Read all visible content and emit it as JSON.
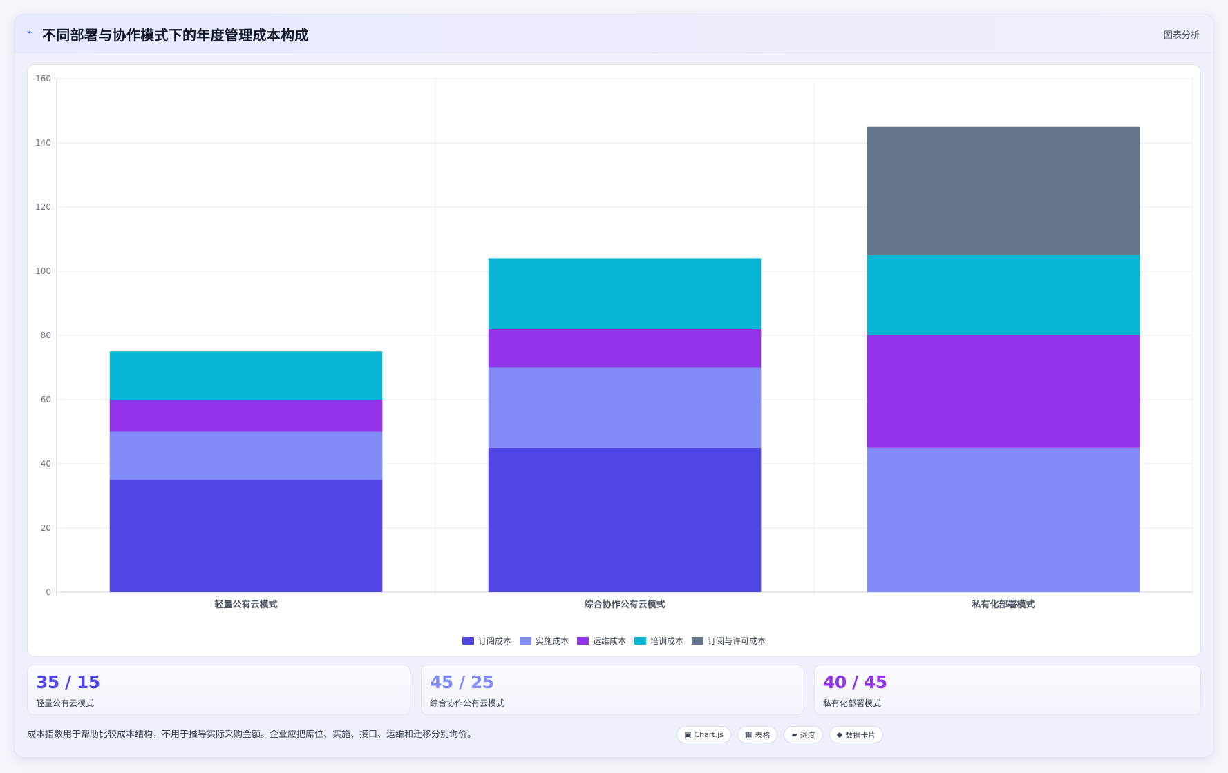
{
  "header": {
    "icon": "pulse-icon",
    "icon_glyph": "⌁",
    "title": "不同部署与协作模式下的年度管理成本构成",
    "tag": "图表分析"
  },
  "chart_data": {
    "type": "bar",
    "stacked": true,
    "categories": [
      "轻量公有云模式",
      "综合协作公有云模式",
      "私有化部署模式"
    ],
    "series": [
      {
        "name": "订阅成本",
        "color": "#4f46e5",
        "values": [
          35,
          45,
          0
        ]
      },
      {
        "name": "实施成本",
        "color": "#818cf8",
        "values": [
          15,
          25,
          45
        ]
      },
      {
        "name": "运维成本",
        "color": "#9333ea",
        "values": [
          10,
          12,
          35
        ]
      },
      {
        "name": "培训成本",
        "color": "#06b6d4",
        "values": [
          15,
          22,
          25
        ]
      },
      {
        "name": "订阅与许可成本",
        "color": "#64748b",
        "values": [
          0,
          0,
          40
        ]
      }
    ],
    "ylim": [
      0,
      160
    ],
    "yticks": [
      "0",
      "20",
      "40",
      "60",
      "80",
      "100",
      "120",
      "140",
      "160"
    ],
    "grid": true,
    "legend": "bottom-center",
    "title": "",
    "xlabel": "",
    "ylabel": ""
  },
  "stats": [
    {
      "value": "35 / 15",
      "label": "轻量公有云模式",
      "color": "#4f46e5"
    },
    {
      "value": "45 / 25",
      "label": "综合协作公有云模式",
      "color": "#818cf8"
    },
    {
      "value": "40 / 45",
      "label": "私有化部署模式",
      "color": "#9333ea"
    }
  ],
  "footnote": "成本指数用于帮助比较成本结构，不用于推导实际采购金额。企业应把席位、实施、接口、运维和迁移分别询价。",
  "footer_buttons": [
    {
      "icon": "chart-icon",
      "glyph": "▣",
      "label": "Chart.js"
    },
    {
      "icon": "table-icon",
      "glyph": "▦",
      "label": "表格"
    },
    {
      "icon": "progress-icon",
      "glyph": "▰",
      "label": "进度"
    },
    {
      "icon": "data-card-icon",
      "glyph": "◆",
      "label": "数据卡片"
    }
  ]
}
